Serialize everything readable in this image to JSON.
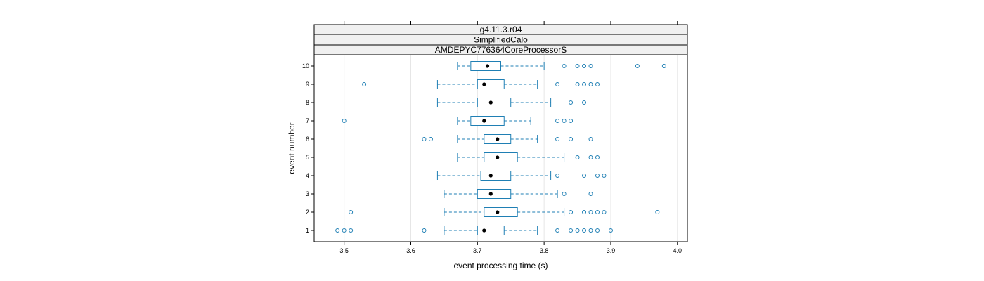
{
  "chart_data": {
    "type": "box",
    "orientation": "horizontal",
    "strips": [
      "g4.11.3.r04",
      "SimplifiedCalo",
      "AMDEPYC776364CoreProcessorS"
    ],
    "xlabel": "event processing time (s)",
    "ylabel": "event number",
    "xlim": [
      3.455,
      4.015
    ],
    "xticks": [
      "3.5",
      "3.6",
      "3.7",
      "3.8",
      "3.9",
      "4.0"
    ],
    "grid": true,
    "colors": {
      "box": "#1f7fb4",
      "median": "#000000",
      "grid": "#e6e6e6"
    },
    "categories": [
      "1",
      "2",
      "3",
      "4",
      "5",
      "6",
      "7",
      "8",
      "9",
      "10"
    ],
    "boxes": [
      {
        "event": "1",
        "whisker_low": 3.65,
        "q1": 3.7,
        "median": 3.71,
        "q3": 3.74,
        "whisker_high": 3.79,
        "outliers": [
          3.49,
          3.5,
          3.51,
          3.62,
          3.82,
          3.84,
          3.85,
          3.86,
          3.87,
          3.88,
          3.9
        ]
      },
      {
        "event": "2",
        "whisker_low": 3.65,
        "q1": 3.71,
        "median": 3.73,
        "q3": 3.76,
        "whisker_high": 3.83,
        "outliers": [
          3.51,
          3.84,
          3.86,
          3.87,
          3.88,
          3.89,
          3.97
        ]
      },
      {
        "event": "3",
        "whisker_low": 3.65,
        "q1": 3.7,
        "median": 3.72,
        "q3": 3.75,
        "whisker_high": 3.82,
        "outliers": [
          3.83,
          3.87
        ]
      },
      {
        "event": "4",
        "whisker_low": 3.64,
        "q1": 3.705,
        "median": 3.72,
        "q3": 3.75,
        "whisker_high": 3.81,
        "outliers": [
          3.82,
          3.86,
          3.88,
          3.89
        ]
      },
      {
        "event": "5",
        "whisker_low": 3.67,
        "q1": 3.71,
        "median": 3.73,
        "q3": 3.76,
        "whisker_high": 3.83,
        "outliers": [
          3.85,
          3.87,
          3.88
        ]
      },
      {
        "event": "6",
        "whisker_low": 3.67,
        "q1": 3.71,
        "median": 3.73,
        "q3": 3.75,
        "whisker_high": 3.79,
        "outliers": [
          3.62,
          3.63,
          3.82,
          3.84,
          3.87
        ]
      },
      {
        "event": "7",
        "whisker_low": 3.67,
        "q1": 3.69,
        "median": 3.71,
        "q3": 3.74,
        "whisker_high": 3.78,
        "outliers": [
          3.5,
          3.82,
          3.83,
          3.84
        ]
      },
      {
        "event": "8",
        "whisker_low": 3.64,
        "q1": 3.7,
        "median": 3.72,
        "q3": 3.75,
        "whisker_high": 3.81,
        "outliers": [
          3.84,
          3.86
        ]
      },
      {
        "event": "9",
        "whisker_low": 3.64,
        "q1": 3.7,
        "median": 3.71,
        "q3": 3.74,
        "whisker_high": 3.79,
        "outliers": [
          3.53,
          3.82,
          3.85,
          3.86,
          3.87,
          3.88
        ]
      },
      {
        "event": "10",
        "whisker_low": 3.67,
        "q1": 3.69,
        "median": 3.715,
        "q3": 3.735,
        "whisker_high": 3.8,
        "outliers": [
          3.83,
          3.85,
          3.86,
          3.87,
          3.94,
          3.98
        ]
      }
    ]
  }
}
